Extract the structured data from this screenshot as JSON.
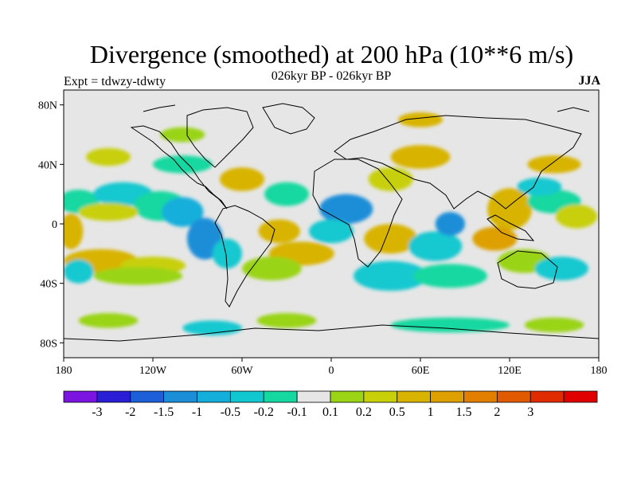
{
  "title": "Divergence (smoothed) at 200 hPa (10**6 m/s)",
  "subtitle": "026kyr BP - 026kyr BP",
  "left_label": "Expt = tdwzy-tdwty",
  "season": "JJA",
  "lat_labels": [
    "80N",
    "40N",
    "0",
    "40S",
    "80S"
  ],
  "lon_labels": [
    "180",
    "120W",
    "60W",
    "0",
    "60E",
    "120E",
    "180"
  ],
  "colorbar": {
    "colors": [
      "#7B14E0",
      "#2A1FD6",
      "#1C5FD8",
      "#1C8ED8",
      "#14AEDB",
      "#12C8D0",
      "#14D8A0",
      "#E6E6E6",
      "#9AD414",
      "#C8D00A",
      "#D8B400",
      "#DDA000",
      "#E27E00",
      "#E25A00",
      "#E02A00",
      "#E00000"
    ],
    "labels": [
      "-3",
      "-2",
      "-1.5",
      "-1",
      "-0.5",
      "-0.2",
      "-0.1",
      "0.1",
      "0.2",
      "0.5",
      "1",
      "1.5",
      "2",
      "3"
    ]
  },
  "field_regions": [
    {
      "color": "#14D8A0",
      "lon": -170,
      "lat": 15,
      "rlon": 14,
      "rlat": 8
    },
    {
      "color": "#12C8D0",
      "lon": -140,
      "lat": 20,
      "rlon": 20,
      "rlat": 8
    },
    {
      "color": "#14D8A0",
      "lon": -115,
      "lat": 12,
      "rlon": 18,
      "rlat": 10
    },
    {
      "color": "#C8D00A",
      "lon": -150,
      "lat": 8,
      "rlon": 20,
      "rlat": 6
    },
    {
      "color": "#14AEDB",
      "lon": -100,
      "lat": 8,
      "rlon": 14,
      "rlat": 10
    },
    {
      "color": "#1C8ED8",
      "lon": -85,
      "lat": -10,
      "rlon": 12,
      "rlat": 14
    },
    {
      "color": "#12C8D0",
      "lon": -70,
      "lat": -20,
      "rlon": 10,
      "rlat": 10
    },
    {
      "color": "#D8B400",
      "lon": -155,
      "lat": -25,
      "rlon": 25,
      "rlat": 8
    },
    {
      "color": "#C8D00A",
      "lon": -120,
      "lat": -28,
      "rlon": 22,
      "rlat": 6
    },
    {
      "color": "#9AD414",
      "lon": -130,
      "lat": -35,
      "rlon": 30,
      "rlat": 6
    },
    {
      "color": "#D8B400",
      "lon": -175,
      "lat": -5,
      "rlon": 8,
      "rlat": 12
    },
    {
      "color": "#12C8D0",
      "lon": -170,
      "lat": -32,
      "rlon": 10,
      "rlat": 8
    },
    {
      "color": "#14D8A0",
      "lon": -100,
      "lat": 40,
      "rlon": 20,
      "rlat": 6
    },
    {
      "color": "#D8B400",
      "lon": -60,
      "lat": 30,
      "rlon": 15,
      "rlat": 8
    },
    {
      "color": "#D8B400",
      "lon": -35,
      "lat": -5,
      "rlon": 14,
      "rlat": 8
    },
    {
      "color": "#D8B400",
      "lon": -20,
      "lat": -20,
      "rlon": 22,
      "rlat": 8
    },
    {
      "color": "#9AD414",
      "lon": -40,
      "lat": -30,
      "rlon": 20,
      "rlat": 8
    },
    {
      "color": "#14D8A0",
      "lon": -30,
      "lat": 20,
      "rlon": 15,
      "rlat": 8
    },
    {
      "color": "#1C8ED8",
      "lon": 10,
      "lat": 10,
      "rlon": 18,
      "rlat": 10
    },
    {
      "color": "#12C8D0",
      "lon": 0,
      "lat": -5,
      "rlon": 15,
      "rlat": 8
    },
    {
      "color": "#D8B400",
      "lon": 40,
      "lat": -10,
      "rlon": 18,
      "rlat": 10
    },
    {
      "color": "#12C8D0",
      "lon": 40,
      "lat": -35,
      "rlon": 25,
      "rlat": 10
    },
    {
      "color": "#14D8A0",
      "lon": 80,
      "lat": -35,
      "rlon": 25,
      "rlat": 8
    },
    {
      "color": "#12C8D0",
      "lon": 70,
      "lat": -15,
      "rlon": 18,
      "rlat": 10
    },
    {
      "color": "#1C8ED8",
      "lon": 80,
      "lat": 0,
      "rlon": 10,
      "rlat": 8
    },
    {
      "color": "#D8B400",
      "lon": 60,
      "lat": 45,
      "rlon": 20,
      "rlat": 8
    },
    {
      "color": "#C8D00A",
      "lon": 40,
      "lat": 30,
      "rlon": 15,
      "rlat": 8
    },
    {
      "color": "#D8B400",
      "lon": 120,
      "lat": 10,
      "rlon": 15,
      "rlat": 14
    },
    {
      "color": "#DDA000",
      "lon": 110,
      "lat": -10,
      "rlon": 15,
      "rlat": 8
    },
    {
      "color": "#14D8A0",
      "lon": 150,
      "lat": 15,
      "rlon": 18,
      "rlat": 8
    },
    {
      "color": "#12C8D0",
      "lon": 140,
      "lat": 25,
      "rlon": 15,
      "rlat": 6
    },
    {
      "color": "#C8D00A",
      "lon": 165,
      "lat": 5,
      "rlon": 14,
      "rlat": 8
    },
    {
      "color": "#D8B400",
      "lon": 150,
      "lat": 40,
      "rlon": 18,
      "rlat": 6
    },
    {
      "color": "#9AD414",
      "lon": 130,
      "lat": -25,
      "rlon": 18,
      "rlat": 8
    },
    {
      "color": "#12C8D0",
      "lon": 155,
      "lat": -30,
      "rlon": 18,
      "rlat": 8
    },
    {
      "color": "#9AD414",
      "lon": -150,
      "lat": -65,
      "rlon": 20,
      "rlat": 5
    },
    {
      "color": "#9AD414",
      "lon": -30,
      "lat": -65,
      "rlon": 20,
      "rlat": 5
    },
    {
      "color": "#14D8A0",
      "lon": 80,
      "lat": -68,
      "rlon": 40,
      "rlat": 5
    },
    {
      "color": "#9AD414",
      "lon": 150,
      "lat": -68,
      "rlon": 20,
      "rlat": 5
    },
    {
      "color": "#12C8D0",
      "lon": -80,
      "lat": -70,
      "rlon": 20,
      "rlat": 5
    },
    {
      "color": "#9AD414",
      "lon": -100,
      "lat": 60,
      "rlon": 15,
      "rlat": 5
    },
    {
      "color": "#D8B400",
      "lon": 60,
      "lat": 70,
      "rlon": 15,
      "rlat": 5
    },
    {
      "color": "#C8D00A",
      "lon": -150,
      "lat": 45,
      "rlon": 15,
      "rlat": 6
    }
  ]
}
